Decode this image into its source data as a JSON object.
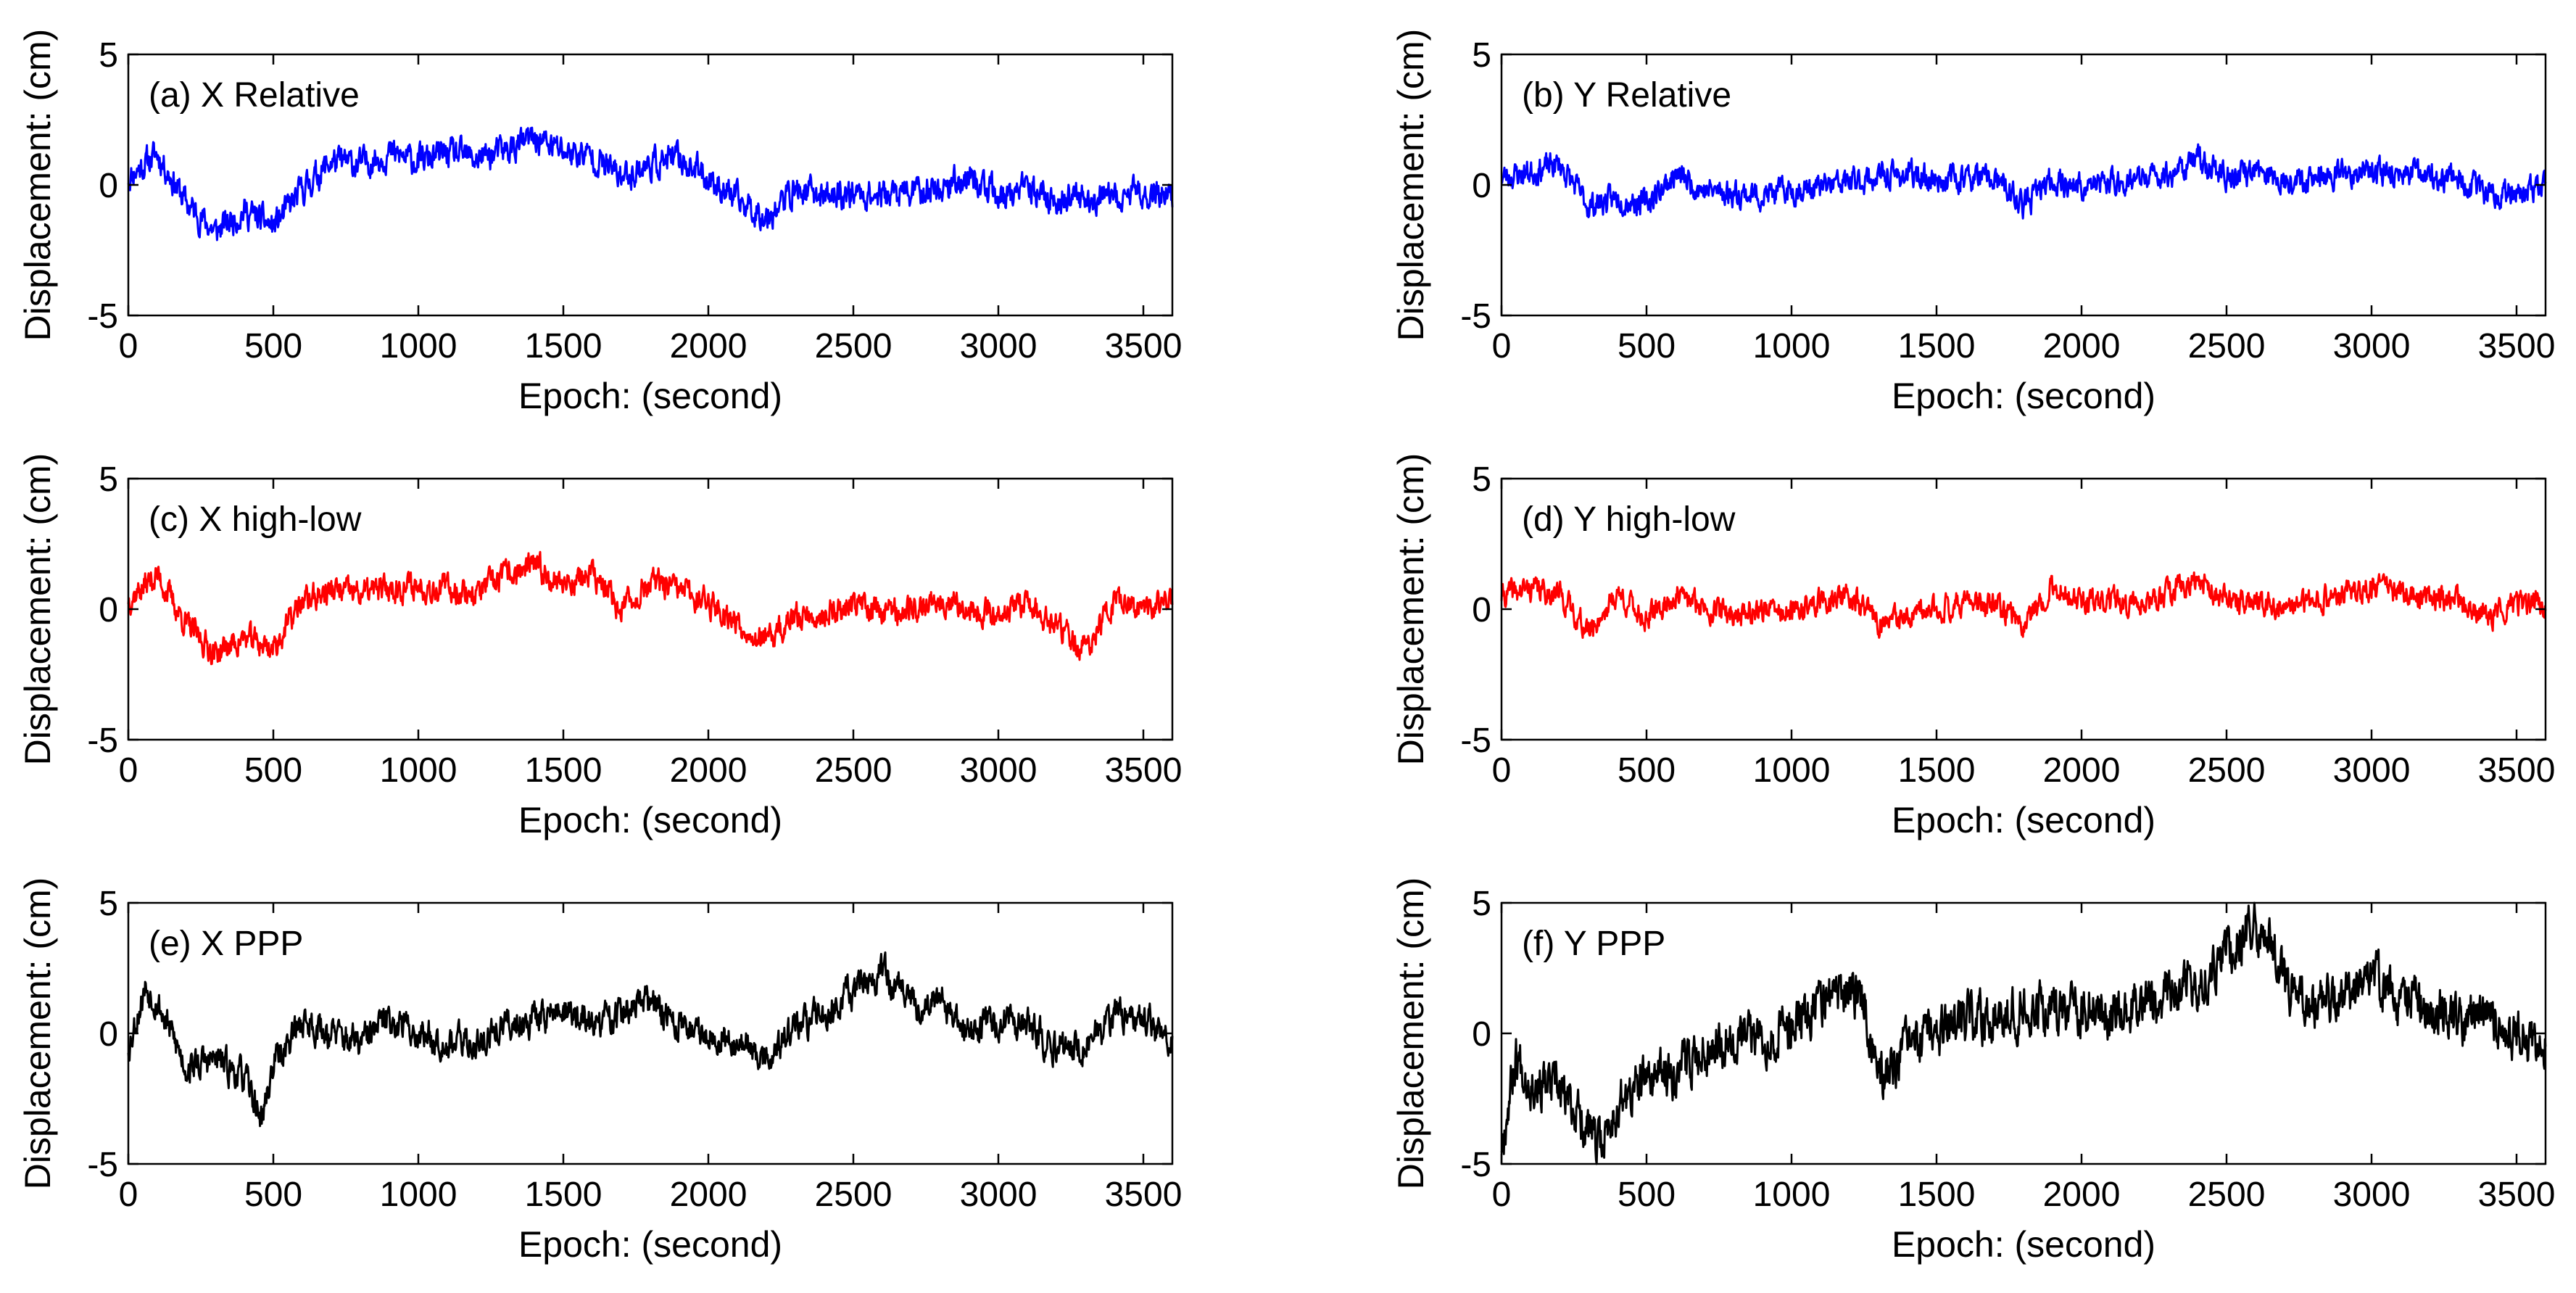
{
  "figure": {
    "xlabel": "Epoch: (second)",
    "ylabel": "Displacement: (cm)"
  },
  "chart_data": [
    {
      "id": "a",
      "type": "line",
      "title": "(a)  X Relative",
      "color": "#0000ff",
      "xlabel": "Epoch: (second)",
      "ylabel": "Displacement: (cm)",
      "xlim": [
        0,
        3600
      ],
      "ylim": [
        -5,
        5
      ],
      "xticks": [
        0,
        500,
        1000,
        1500,
        2000,
        2500,
        3000,
        3500
      ],
      "yticks": [
        -5,
        0,
        5
      ],
      "seed": 11,
      "noise_amplitude": 0.45,
      "series": [
        {
          "name": "X Relative",
          "trend_x": [
            0,
            100,
            200,
            300,
            400,
            500,
            600,
            700,
            800,
            900,
            1000,
            1100,
            1200,
            1300,
            1400,
            1500,
            1600,
            1700,
            1800,
            1900,
            2000,
            2100,
            2200,
            2300,
            2400,
            2500,
            2600,
            2700,
            2800,
            2900,
            3000,
            3100,
            3200,
            3300,
            3400,
            3500,
            3600
          ],
          "trend_y": [
            0.3,
            1.2,
            -0.7,
            -1.8,
            -1.0,
            -1.6,
            -0.2,
            0.9,
            0.8,
            1.2,
            0.9,
            1.2,
            1.0,
            1.3,
            1.8,
            1.3,
            1.1,
            0.3,
            0.8,
            1.0,
            0.3,
            -0.6,
            -1.2,
            -0.2,
            -0.4,
            -0.3,
            -0.4,
            -0.3,
            -0.1,
            0.3,
            -0.5,
            -0.2,
            -0.6,
            -0.5,
            -0.6,
            -0.2,
            -0.4
          ]
        }
      ]
    },
    {
      "id": "b",
      "type": "line",
      "title": "(b) Y Relative",
      "color": "#0000ff",
      "xlabel": "Epoch: (second)",
      "ylabel": "Displacement: (cm)",
      "xlim": [
        0,
        3600
      ],
      "ylim": [
        -5,
        5
      ],
      "xticks": [
        0,
        500,
        1000,
        1500,
        2000,
        2500,
        3000,
        3500
      ],
      "yticks": [
        -5,
        0,
        5
      ],
      "seed": 23,
      "noise_amplitude": 0.4,
      "series": [
        {
          "name": "Y Relative",
          "trend_x": [
            0,
            100,
            200,
            300,
            400,
            500,
            600,
            700,
            800,
            900,
            1000,
            1100,
            1200,
            1300,
            1400,
            1500,
            1600,
            1700,
            1800,
            1900,
            2000,
            2100,
            2200,
            2300,
            2400,
            2500,
            2600,
            2700,
            2800,
            2900,
            3000,
            3100,
            3200,
            3300,
            3400,
            3500,
            3600
          ],
          "trend_y": [
            0.3,
            0.5,
            0.8,
            -0.8,
            -0.5,
            -0.7,
            0.4,
            -0.2,
            -0.3,
            -0.4,
            -0.2,
            -0.1,
            0.1,
            0.3,
            0.4,
            0.2,
            0.3,
            0.2,
            -0.8,
            0.2,
            -0.1,
            0.1,
            0.2,
            0.4,
            1.0,
            0.3,
            0.5,
            0.2,
            0.3,
            0.4,
            0.6,
            0.4,
            0.3,
            0.2,
            -0.4,
            -0.2,
            -0.1
          ]
        }
      ]
    },
    {
      "id": "c",
      "type": "line",
      "title": "(c) X high-low",
      "color": "#ff0000",
      "xlabel": "Epoch: (second)",
      "ylabel": "Displacement: (cm)",
      "xlim": [
        0,
        3600
      ],
      "ylim": [
        -5,
        5
      ],
      "xticks": [
        0,
        500,
        1000,
        1500,
        2000,
        2500,
        3000,
        3500
      ],
      "yticks": [
        -5,
        0,
        5
      ],
      "seed": 37,
      "noise_amplitude": 0.42,
      "series": [
        {
          "name": "X high-low",
          "trend_x": [
            0,
            100,
            200,
            300,
            400,
            500,
            600,
            700,
            800,
            900,
            1000,
            1100,
            1200,
            1300,
            1400,
            1500,
            1600,
            1700,
            1800,
            1900,
            2000,
            2100,
            2200,
            2300,
            2400,
            2500,
            2600,
            2700,
            2800,
            2900,
            3000,
            3100,
            3200,
            3300,
            3400,
            3500,
            3600
          ],
          "trend_y": [
            0.4,
            1.3,
            -0.6,
            -1.7,
            -1.1,
            -1.5,
            0.3,
            0.7,
            0.6,
            0.8,
            0.9,
            0.8,
            0.6,
            1.3,
            1.6,
            1.0,
            1.3,
            0.0,
            1.0,
            0.7,
            0.3,
            -0.5,
            -1.3,
            -0.3,
            -0.2,
            0.2,
            0.0,
            -0.1,
            0.5,
            0.0,
            -0.1,
            0.2,
            -0.7,
            -1.6,
            0.3,
            0.1,
            0.2
          ]
        }
      ]
    },
    {
      "id": "d",
      "type": "line",
      "title": "(d) Y high-low",
      "color": "#ff0000",
      "xlabel": "Epoch: (second)",
      "ylabel": "Displacement: (cm)",
      "xlim": [
        0,
        3600
      ],
      "ylim": [
        -5,
        5
      ],
      "xticks": [
        0,
        500,
        1000,
        1500,
        2000,
        2500,
        3000,
        3500
      ],
      "yticks": [
        -5,
        0,
        5
      ],
      "seed": 41,
      "noise_amplitude": 0.38,
      "series": [
        {
          "name": "Y high-low",
          "trend_x": [
            0,
            100,
            200,
            300,
            400,
            500,
            600,
            700,
            800,
            900,
            1000,
            1100,
            1200,
            1300,
            1400,
            1500,
            1600,
            1700,
            1800,
            1900,
            2000,
            2100,
            2200,
            2300,
            2400,
            2500,
            2600,
            2700,
            2800,
            2900,
            3000,
            3100,
            3200,
            3300,
            3400,
            3500,
            3600
          ],
          "trend_y": [
            0.5,
            0.8,
            0.6,
            -0.9,
            0.6,
            -0.4,
            0.5,
            0.1,
            -0.2,
            0.0,
            -0.2,
            0.3,
            0.5,
            -0.5,
            -0.4,
            0.0,
            0.3,
            0.1,
            -0.5,
            0.9,
            0.2,
            0.3,
            0.1,
            0.6,
            1.2,
            0.3,
            0.3,
            0.1,
            0.2,
            0.6,
            0.8,
            0.6,
            0.5,
            0.3,
            -0.3,
            0.2,
            0.3
          ]
        }
      ]
    },
    {
      "id": "e",
      "type": "line",
      "title": "(e) X PPP",
      "color": "#000000",
      "xlabel": "Epoch: (second)",
      "ylabel": "Displacement: (cm)",
      "xlim": [
        0,
        3600
      ],
      "ylim": [
        -5,
        5
      ],
      "xticks": [
        0,
        500,
        1000,
        1500,
        2000,
        2500,
        3000,
        3500
      ],
      "yticks": [
        -5,
        0,
        5
      ],
      "seed": 53,
      "noise_amplitude": 0.5,
      "series": [
        {
          "name": "X PPP",
          "trend_x": [
            0,
            60,
            100,
            200,
            300,
            400,
            460,
            500,
            600,
            700,
            800,
            900,
            1000,
            1100,
            1200,
            1300,
            1400,
            1500,
            1600,
            1700,
            1800,
            1900,
            2000,
            2100,
            2200,
            2300,
            2400,
            2500,
            2600,
            2700,
            2800,
            2900,
            3000,
            3100,
            3200,
            3300,
            3400,
            3500,
            3600
          ],
          "trend_y": [
            -0.5,
            1.8,
            1.2,
            -1.3,
            -1.0,
            -1.7,
            -3.3,
            -1.2,
            0.5,
            0.0,
            -0.4,
            0.6,
            0.0,
            -0.3,
            -0.4,
            0.3,
            0.6,
            0.9,
            0.3,
            0.8,
            1.2,
            0.3,
            0.0,
            -0.3,
            -1.0,
            0.2,
            0.8,
            1.6,
            2.4,
            1.0,
            1.2,
            0.0,
            0.5,
            0.3,
            -0.6,
            -0.5,
            0.6,
            0.6,
            -0.4
          ]
        }
      ]
    },
    {
      "id": "f",
      "type": "line",
      "title": "(f) Y PPP",
      "color": "#000000",
      "xlabel": "Epoch: (second)",
      "ylabel": "Displacement: (cm)",
      "xlim": [
        0,
        3600
      ],
      "ylim": [
        -5,
        5
      ],
      "xticks": [
        0,
        500,
        1000,
        1500,
        2000,
        2500,
        3000,
        3500
      ],
      "yticks": [
        -5,
        0,
        5
      ],
      "seed": 67,
      "noise_amplitude": 0.75,
      "series": [
        {
          "name": "Y PPP",
          "trend_x": [
            0,
            50,
            100,
            200,
            300,
            330,
            400,
            500,
            600,
            700,
            800,
            900,
            1000,
            1100,
            1200,
            1250,
            1300,
            1400,
            1500,
            1600,
            1700,
            1800,
            1900,
            2000,
            2100,
            2200,
            2300,
            2400,
            2500,
            2600,
            2650,
            2700,
            2800,
            2900,
            3000,
            3100,
            3200,
            3300,
            3400,
            3500,
            3600
          ],
          "trend_y": [
            -4.2,
            -0.8,
            -1.8,
            -2.2,
            -3.6,
            -4.5,
            -2.8,
            -1.8,
            -1.4,
            -0.6,
            0.0,
            -0.2,
            0.3,
            1.2,
            1.6,
            1.4,
            -1.8,
            -0.6,
            0.0,
            0.4,
            0.8,
            1.0,
            0.9,
            1.0,
            0.8,
            1.2,
            1.6,
            1.9,
            3.2,
            4.3,
            3.8,
            1.8,
            1.0,
            1.5,
            2.2,
            1.3,
            1.0,
            0.5,
            0.6,
            0.0,
            -0.5
          ]
        }
      ]
    }
  ]
}
